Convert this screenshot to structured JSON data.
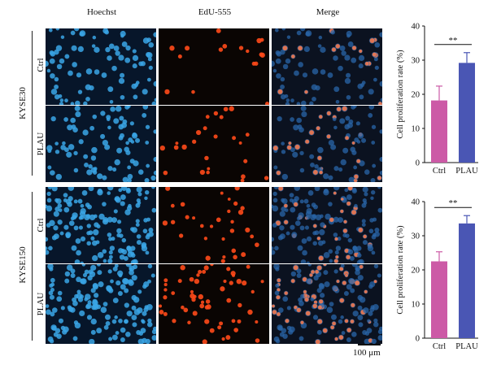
{
  "column_headers": [
    "Hoechst",
    "EdU-555",
    "Merge"
  ],
  "cell_lines": [
    {
      "name": "KYSE30",
      "rows": [
        "Ctrl",
        "PLAU"
      ]
    },
    {
      "name": "KYSE150",
      "rows": [
        "Ctrl",
        "PLAU"
      ]
    }
  ],
  "scale_bar_label": "100 μm",
  "colors": {
    "ctrl": "#cc5aa6",
    "plau": "#4a56b4",
    "nuclei_blue": "#3aa6e6",
    "edu_red": "#ff4a1a"
  },
  "chart_data": [
    {
      "type": "bar",
      "categories": [
        "Ctrl",
        "PLAU"
      ],
      "values": [
        18.2,
        29.2
      ],
      "errors": [
        4.2,
        3.0
      ],
      "ylabel": "Cell proliferation rate (%)",
      "ylim": [
        0,
        40
      ],
      "yticks": [
        0,
        10,
        20,
        30,
        40
      ],
      "significance": "**",
      "bar_colors": [
        "#cc5aa6",
        "#4a56b4"
      ]
    },
    {
      "type": "bar",
      "categories": [
        "Ctrl",
        "PLAU"
      ],
      "values": [
        22.5,
        33.6
      ],
      "errors": [
        2.8,
        2.3
      ],
      "ylabel": "Cell proliferation rate (%)",
      "ylim": [
        0,
        40
      ],
      "yticks": [
        0,
        10,
        20,
        30,
        40
      ],
      "significance": "**",
      "bar_colors": [
        "#cc5aa6",
        "#4a56b4"
      ]
    }
  ]
}
